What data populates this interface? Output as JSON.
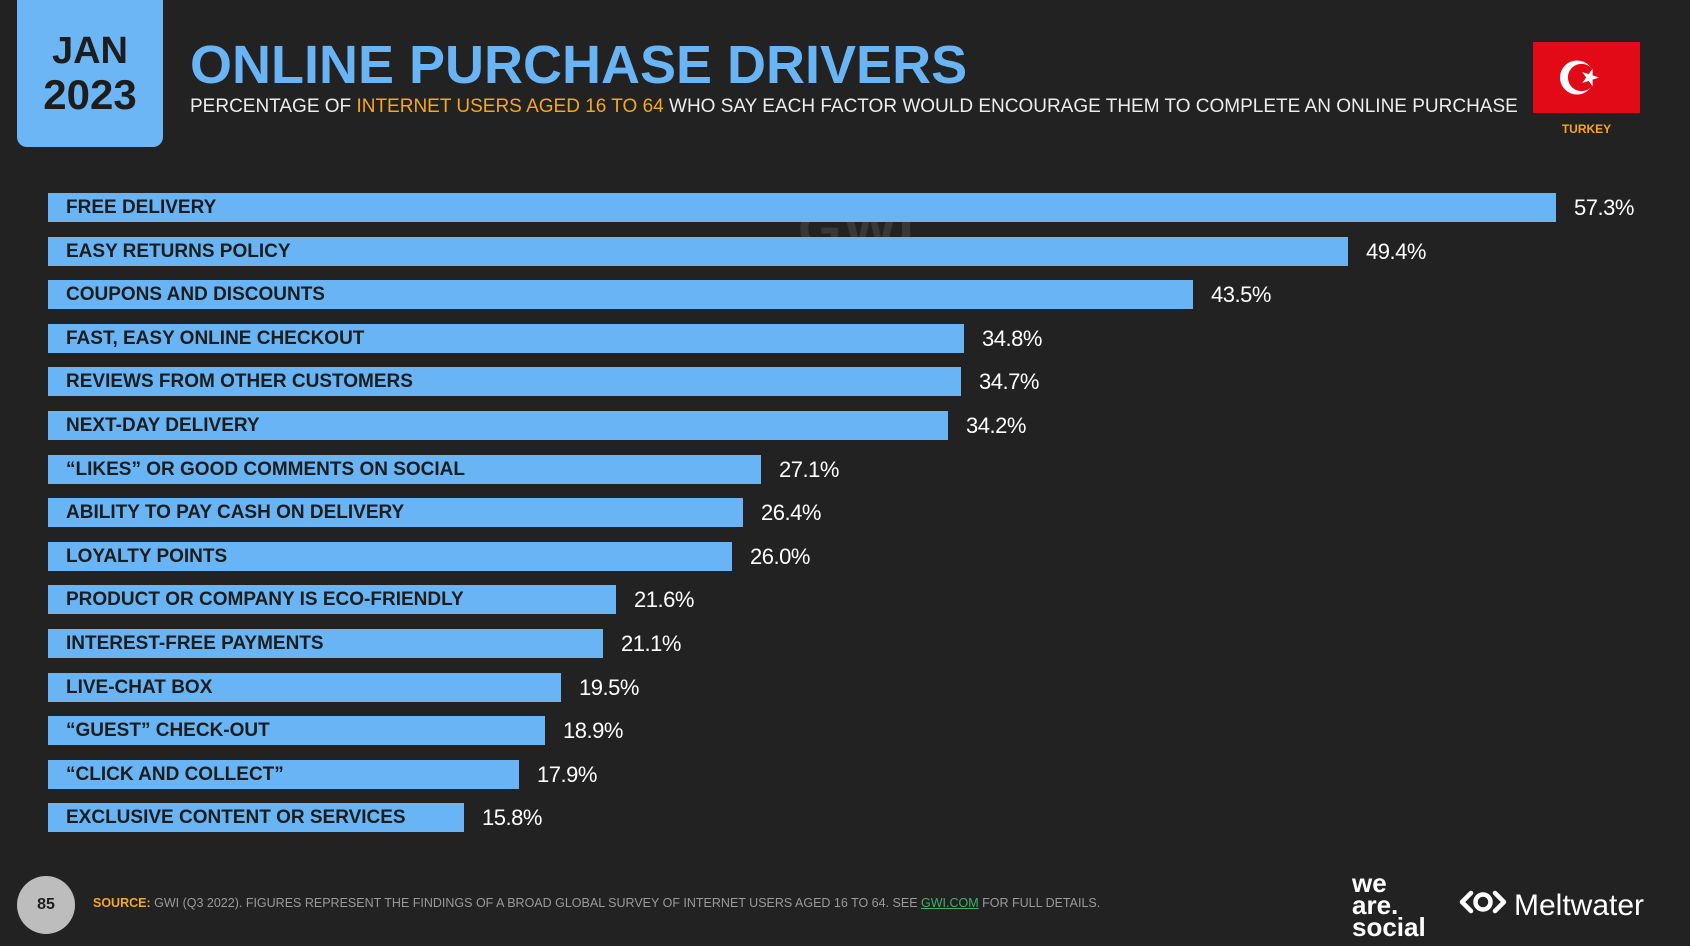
{
  "header": {
    "month": "JAN",
    "year": "2023",
    "title": "ONLINE PURCHASE DRIVERS",
    "subtitle_pre": "PERCENTAGE OF ",
    "subtitle_highlight": "INTERNET USERS AGED 16 TO 64",
    "subtitle_post": " WHO SAY EACH FACTOR WOULD ENCOURAGE THEM TO COMPLETE AN ONLINE PURCHASE",
    "country": "TURKEY"
  },
  "watermark": "GWI.",
  "colors": {
    "bar": "#69B4F4",
    "background": "#222222",
    "accent": "#F5A623",
    "flag_red": "#E30A17"
  },
  "chart_data": {
    "type": "bar",
    "orientation": "horizontal",
    "title": "ONLINE PURCHASE DRIVERS",
    "xlim": [
      0,
      57.3
    ],
    "categories": [
      "FREE DELIVERY",
      "EASY RETURNS POLICY",
      "COUPONS AND DISCOUNTS",
      "FAST, EASY ONLINE CHECKOUT",
      "REVIEWS FROM OTHER CUSTOMERS",
      "NEXT-DAY DELIVERY",
      "“LIKES” OR GOOD COMMENTS ON SOCIAL",
      "ABILITY TO PAY CASH ON DELIVERY",
      "LOYALTY POINTS",
      "PRODUCT OR COMPANY IS ECO-FRIENDLY",
      "INTEREST-FREE PAYMENTS",
      "LIVE-CHAT BOX",
      "“GUEST” CHECK-OUT",
      "“CLICK AND COLLECT”",
      "EXCLUSIVE CONTENT OR SERVICES"
    ],
    "values": [
      57.3,
      49.4,
      43.5,
      34.8,
      34.7,
      34.2,
      27.1,
      26.4,
      26.0,
      21.6,
      21.1,
      19.5,
      18.9,
      17.9,
      15.8
    ],
    "value_labels": [
      "57.3%",
      "49.4%",
      "43.5%",
      "34.8%",
      "34.7%",
      "34.2%",
      "27.1%",
      "26.4%",
      "26.0%",
      "21.6%",
      "21.1%",
      "19.5%",
      "18.9%",
      "17.9%",
      "15.8%"
    ]
  },
  "footer": {
    "page_number": "85",
    "source_label": "SOURCE:",
    "source_text": " GWI (Q3 2022). FIGURES REPRESENT THE FINDINGS OF A BROAD GLOBAL SURVEY OF INTERNET USERS AGED 16 TO 64. SEE ",
    "source_link": "GWI.COM",
    "source_tail": " FOR FULL DETAILS.",
    "brand1_line1": "we",
    "brand1_line2": "are.",
    "brand1_line3": "social",
    "brand2": "Meltwater"
  }
}
